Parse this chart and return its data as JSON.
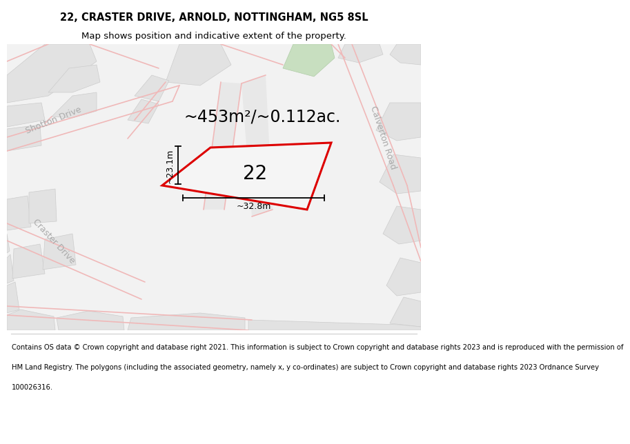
{
  "title_line1": "22, CRASTER DRIVE, ARNOLD, NOTTINGHAM, NG5 8SL",
  "title_line2": "Map shows position and indicative extent of the property.",
  "area_label": "~453m²/~0.112ac.",
  "property_number": "22",
  "dim_width": "~32.8m",
  "dim_height": "~23.1m",
  "footer_lines": [
    "Contains OS data © Crown copyright and database right 2021. This information is subject to Crown copyright and database rights 2023 and is reproduced with the permission of",
    "HM Land Registry. The polygons (including the associated geometry, namely x, y co-ordinates) are subject to Crown copyright and database rights 2023 Ordnance Survey",
    "100026316."
  ],
  "road_line_color": "#f0b8b8",
  "road_fill_light": "#ebebeb",
  "road_fill_medium": "#e0e0e0",
  "property_fill": "#f5f5f5",
  "property_outline": "#dd0000",
  "green_fill": "#c8dfc0",
  "title_fontsize": 10.5,
  "subtitle_fontsize": 9.5,
  "area_fontsize": 17,
  "number_fontsize": 20,
  "label_fontsize": 9,
  "dim_fontsize": 9,
  "footer_fontsize": 7.2
}
